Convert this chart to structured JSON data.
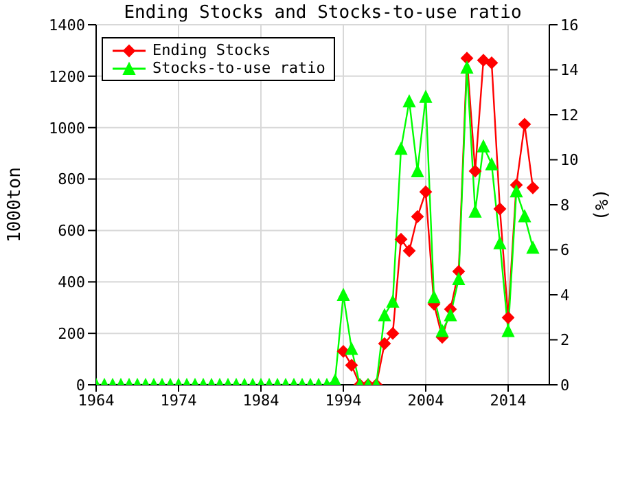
{
  "chart_data": {
    "type": "line",
    "title": "Ending Stocks and Stocks-to-use ratio",
    "ylabel": "1000ton",
    "y2label": "(%)",
    "x": [
      1964,
      1965,
      1966,
      1967,
      1968,
      1969,
      1970,
      1971,
      1972,
      1973,
      1974,
      1975,
      1976,
      1977,
      1978,
      1979,
      1980,
      1981,
      1982,
      1983,
      1984,
      1985,
      1986,
      1987,
      1988,
      1989,
      1990,
      1991,
      1992,
      1993,
      1994,
      1995,
      1996,
      1997,
      1998,
      1999,
      2000,
      2001,
      2002,
      2003,
      2004,
      2005,
      2006,
      2007,
      2008,
      2009,
      2010,
      2011,
      2012,
      2013,
      2014,
      2015,
      2016,
      2017
    ],
    "series": [
      {
        "name": "Ending Stocks",
        "color": "#ff0000",
        "marker": "diamond",
        "values": [
          null,
          null,
          null,
          null,
          null,
          null,
          null,
          null,
          null,
          null,
          null,
          null,
          null,
          null,
          null,
          null,
          null,
          null,
          null,
          null,
          null,
          null,
          null,
          null,
          null,
          null,
          null,
          null,
          null,
          null,
          130,
          76,
          0,
          0,
          0,
          160,
          200,
          566,
          521,
          654,
          750,
          314,
          185,
          294,
          441,
          1270,
          831,
          1262,
          1252,
          684,
          261,
          777,
          1013,
          766
        ]
      },
      {
        "name": "Stocks-to-use ratio",
        "color": "#00ff00",
        "marker": "triangle",
        "axis": "y2",
        "values": [
          0,
          0,
          0,
          0,
          0,
          0,
          0,
          0,
          0,
          0,
          0,
          0,
          0,
          0,
          0,
          0,
          0,
          0,
          0,
          0,
          0,
          0,
          0,
          0,
          0,
          0,
          0,
          0,
          0,
          0.2,
          4.0,
          1.6,
          0,
          0,
          0,
          3.1,
          3.7,
          10.5,
          12.6,
          9.5,
          12.8,
          3.9,
          2.4,
          3.1,
          4.7,
          14.1,
          7.7,
          10.6,
          9.8,
          6.3,
          2.4,
          8.6,
          7.5,
          6.1
        ]
      }
    ],
    "xlim": [
      1964,
      2019
    ],
    "xticks": [
      1964,
      1974,
      1984,
      1994,
      2004,
      2014
    ],
    "ylim": [
      0,
      1400
    ],
    "yticks": [
      0,
      200,
      400,
      600,
      800,
      1000,
      1200,
      1400
    ],
    "y2lim": [
      0,
      16
    ],
    "y2ticks": [
      0,
      2,
      4,
      6,
      8,
      10,
      12,
      14,
      16
    ],
    "grid": true,
    "legend": "top left",
    "line_style": "solid"
  }
}
